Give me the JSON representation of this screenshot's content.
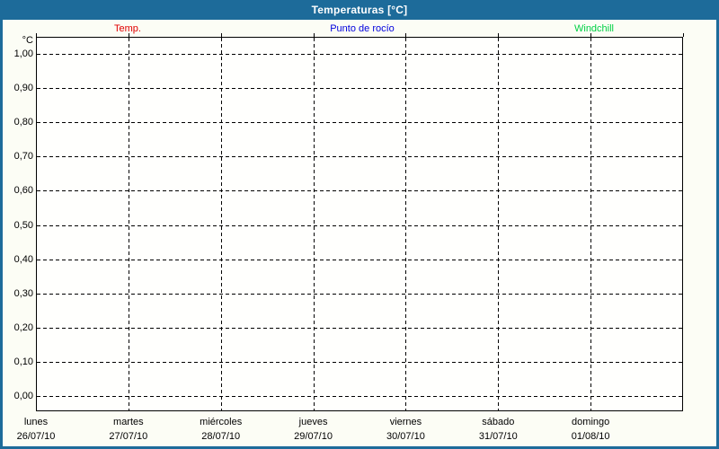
{
  "window": {
    "title": "Temperaturas [°C]"
  },
  "legend": {
    "items": [
      {
        "name": "temp",
        "label": "Temp.",
        "color": "#e00000"
      },
      {
        "name": "punto-de-rocio",
        "label": "Punto de rocío",
        "color": "#0000dd"
      },
      {
        "name": "windchill",
        "label": "Windchill",
        "color": "#00d044"
      }
    ]
  },
  "chart_data": {
    "type": "line",
    "title": "Temperaturas [°C]",
    "ylabel": "°C",
    "xlabel": "",
    "ylim": [
      0.0,
      1.0
    ],
    "y_tick_step": 0.1,
    "y_tick_labels": [
      "1,00",
      "0,90",
      "0,80",
      "0,70",
      "0,60",
      "0,50",
      "0,40",
      "0,30",
      "0,20",
      "0,10",
      "0,00"
    ],
    "grid": "dashed, horizontal at every 0,10 and vertical at every day boundary",
    "legend_position": "top, horizontal row above plot",
    "categories": [
      {
        "day": "lunes",
        "date": "26/07/10"
      },
      {
        "day": "martes",
        "date": "27/07/10"
      },
      {
        "day": "miércoles",
        "date": "28/07/10"
      },
      {
        "day": "jueves",
        "date": "29/07/10"
      },
      {
        "day": "viernes",
        "date": "30/07/10"
      },
      {
        "day": "sábado",
        "date": "31/07/10"
      },
      {
        "day": "domingo",
        "date": "01/08/10"
      }
    ],
    "series": [
      {
        "name": "Temp.",
        "color": "#e00000",
        "values": []
      },
      {
        "name": "Punto de rocío",
        "color": "#0000dd",
        "values": []
      },
      {
        "name": "Windchill",
        "color": "#00d044",
        "values": []
      }
    ],
    "note_visible_state": "plot area is empty — no data lines drawn"
  },
  "colors": {
    "titlebar": "#1d6b9a",
    "frame": "#1d6b9a",
    "content_background": "#fcfdf5",
    "plot_background": "#fffffd",
    "grid": "#000000",
    "axis_text": "#000000"
  }
}
